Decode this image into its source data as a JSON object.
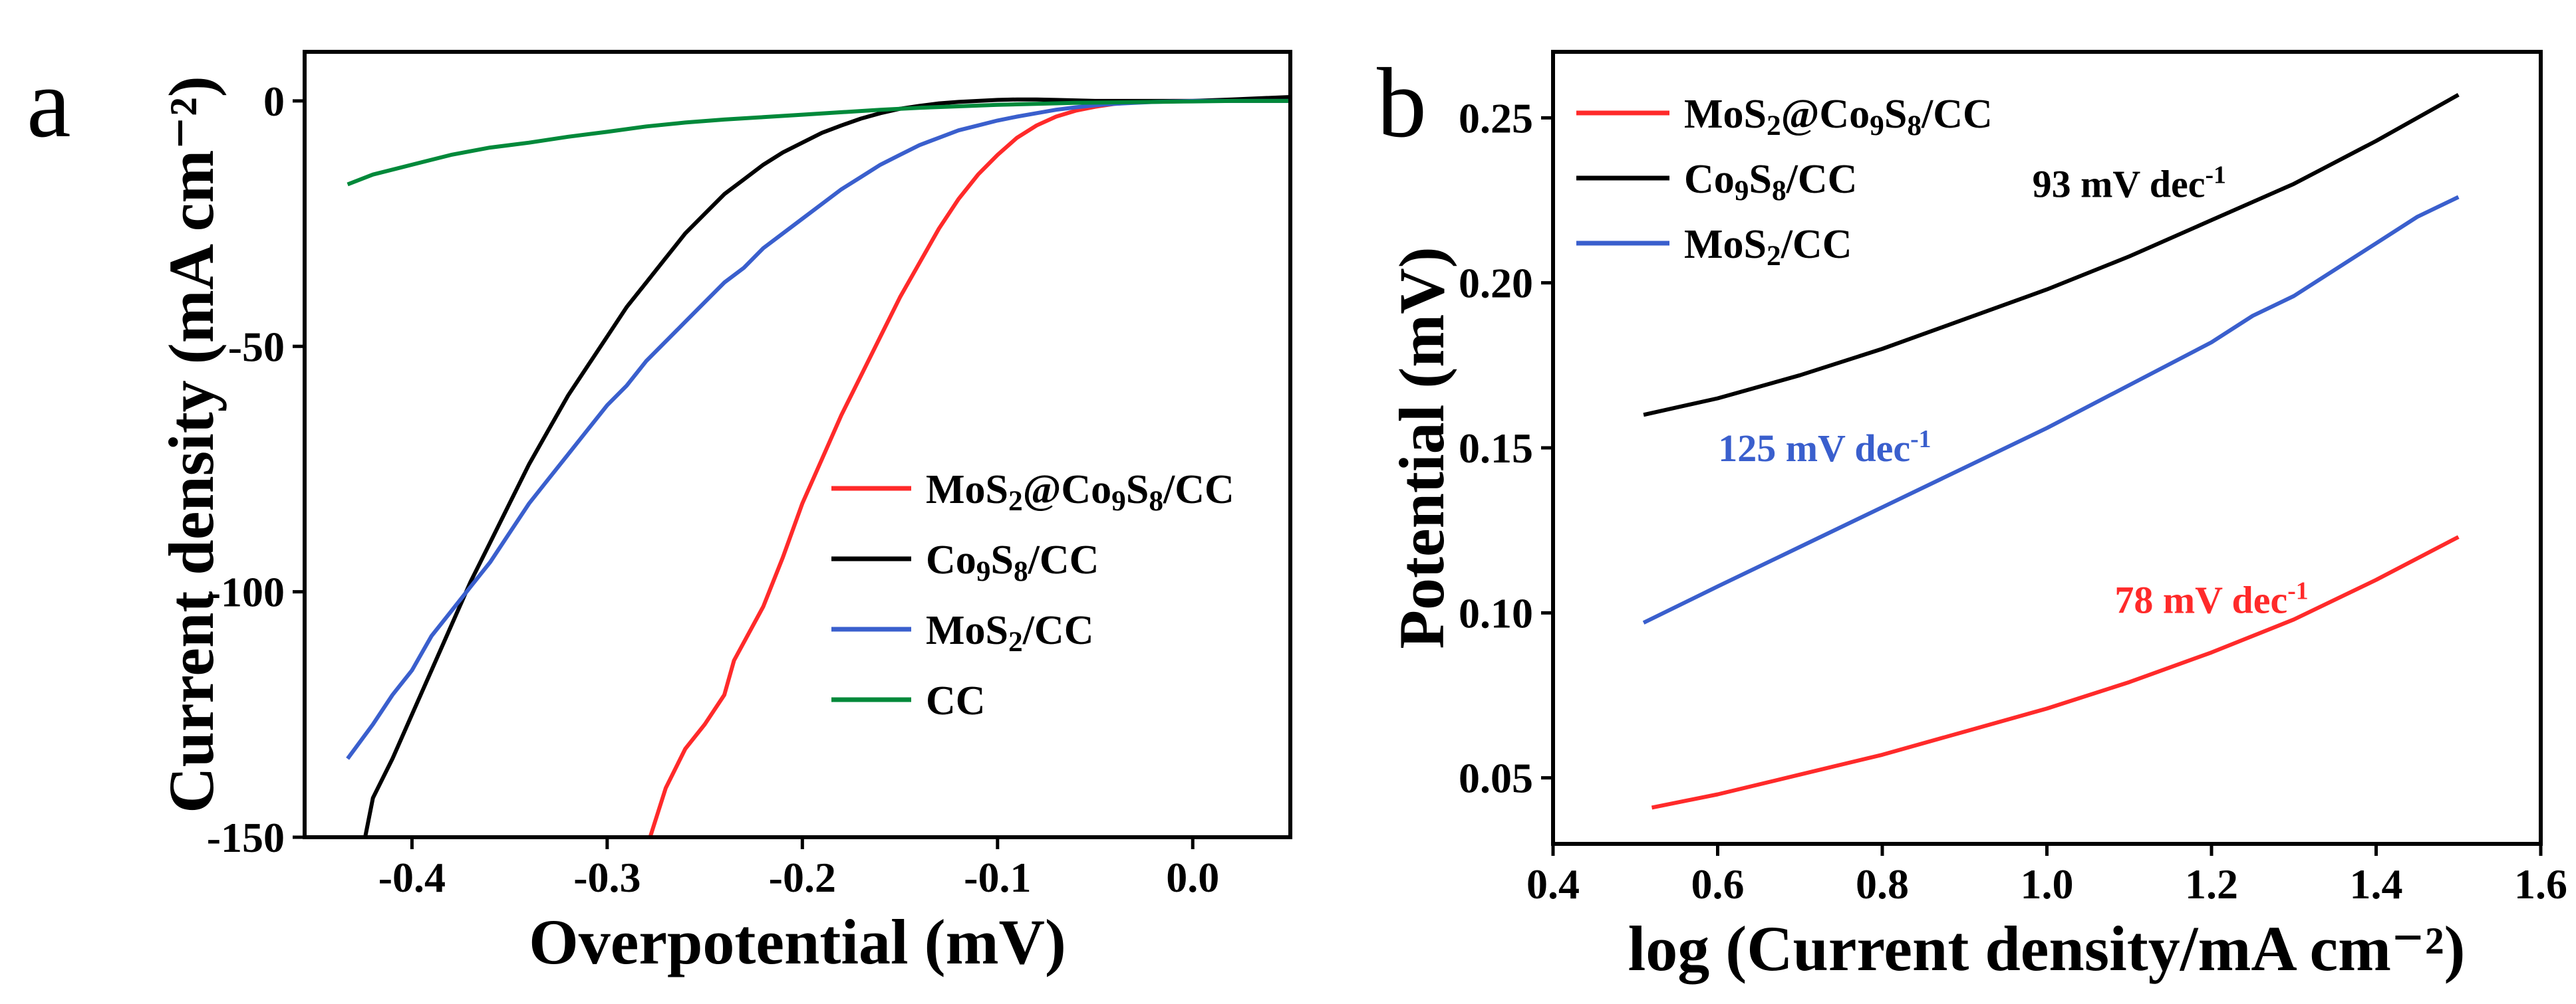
{
  "figure": {
    "panels": [
      {
        "panel_label": "a",
        "chart_data": {
          "type": "line",
          "title": "",
          "xlabel": "Overpotential (mV)",
          "ylabel": "Current density (mA cm⁻²)",
          "xlim": [
            -0.455,
            0.05
          ],
          "ylim": [
            -150,
            10
          ],
          "xticks": [
            -0.4,
            -0.3,
            -0.2,
            -0.1,
            0.0
          ],
          "xtick_labels": [
            "-0.4",
            "-0.3",
            "-0.2",
            "-0.1",
            "0.0"
          ],
          "yticks": [
            0,
            -50,
            -100,
            -150
          ],
          "ytick_labels": [
            "0",
            "-50",
            "-100",
            "-150"
          ],
          "grid": false,
          "legend_position": "center-right",
          "series": [
            {
              "name": "MoS₂@Co₉S₈/CC",
              "color": "#ff2a2a",
              "x": [
                -0.278,
                -0.27,
                -0.26,
                -0.25,
                -0.24,
                -0.235,
                -0.22,
                -0.21,
                -0.2,
                -0.19,
                -0.18,
                -0.17,
                -0.16,
                -0.15,
                -0.14,
                -0.13,
                -0.12,
                -0.11,
                -0.1,
                -0.09,
                -0.08,
                -0.07,
                -0.06,
                -0.05,
                -0.04,
                -0.03,
                -0.02,
                -0.01,
                0.0,
                0.02,
                0.05
              ],
              "y": [
                -150,
                -140,
                -132,
                -127,
                -121,
                -114,
                -103,
                -93,
                -82,
                -73,
                -64,
                -56,
                -48,
                -40,
                -33,
                -26,
                -20,
                -15,
                -11,
                -7.5,
                -5,
                -3.2,
                -2,
                -1.2,
                -0.6,
                -0.3,
                -0.1,
                0,
                0,
                0,
                0
              ]
            },
            {
              "name": "Co₉S₈/CC",
              "color": "#000000",
              "x": [
                -0.424,
                -0.42,
                -0.41,
                -0.4,
                -0.39,
                -0.38,
                -0.37,
                -0.36,
                -0.35,
                -0.34,
                -0.33,
                -0.32,
                -0.31,
                -0.3,
                -0.29,
                -0.28,
                -0.27,
                -0.26,
                -0.25,
                -0.24,
                -0.23,
                -0.22,
                -0.21,
                -0.2,
                -0.19,
                -0.18,
                -0.17,
                -0.16,
                -0.15,
                -0.14,
                -0.13,
                -0.12,
                -0.11,
                -0.1,
                -0.09,
                -0.08,
                -0.07,
                -0.06,
                -0.05,
                -0.04,
                -0.03,
                -0.02,
                -0.01,
                0.0,
                0.02,
                0.05
              ],
              "y": [
                -150,
                -142,
                -134,
                -125,
                -116,
                -107,
                -98,
                -90,
                -82,
                -74,
                -67,
                -60,
                -54,
                -48,
                -42,
                -37,
                -32,
                -27,
                -23,
                -19,
                -16,
                -13,
                -10.5,
                -8.5,
                -6.5,
                -5,
                -3.6,
                -2.5,
                -1.6,
                -1,
                -0.5,
                -0.2,
                0,
                0.2,
                0.3,
                0.3,
                0.2,
                0.1,
                0,
                0,
                0,
                0,
                0,
                0,
                0.3,
                0.8
              ]
            },
            {
              "name": "MoS₂/CC",
              "color": "#3a5fcd",
              "x": [
                -0.433,
                -0.42,
                -0.41,
                -0.4,
                -0.39,
                -0.38,
                -0.37,
                -0.36,
                -0.35,
                -0.34,
                -0.33,
                -0.32,
                -0.31,
                -0.3,
                -0.29,
                -0.28,
                -0.27,
                -0.26,
                -0.25,
                -0.24,
                -0.23,
                -0.22,
                -0.21,
                -0.2,
                -0.19,
                -0.18,
                -0.17,
                -0.16,
                -0.15,
                -0.14,
                -0.13,
                -0.12,
                -0.11,
                -0.1,
                -0.09,
                -0.08,
                -0.07,
                -0.06,
                -0.05,
                -0.04,
                -0.03,
                -0.02,
                -0.01,
                0.0,
                0.02,
                0.05
              ],
              "y": [
                -134,
                -127,
                -121,
                -116,
                -109,
                -104,
                -99,
                -94,
                -88,
                -82,
                -77,
                -72,
                -67,
                -62,
                -58,
                -53,
                -49,
                -45,
                -41,
                -37,
                -34,
                -30,
                -27,
                -24,
                -21,
                -18,
                -15.5,
                -13,
                -11,
                -9,
                -7.5,
                -6,
                -5,
                -4,
                -3.2,
                -2.5,
                -1.8,
                -1.3,
                -0.9,
                -0.6,
                -0.4,
                -0.2,
                -0.1,
                0,
                0,
                0
              ]
            },
            {
              "name": "CC",
              "color": "#00893a",
              "x": [
                -0.433,
                -0.42,
                -0.4,
                -0.38,
                -0.36,
                -0.34,
                -0.32,
                -0.3,
                -0.28,
                -0.26,
                -0.24,
                -0.22,
                -0.2,
                -0.18,
                -0.16,
                -0.14,
                -0.12,
                -0.1,
                -0.08,
                -0.06,
                -0.04,
                -0.02,
                0.0,
                0.02,
                0.05
              ],
              "y": [
                -17,
                -15,
                -13,
                -11,
                -9.5,
                -8.5,
                -7.3,
                -6.3,
                -5.2,
                -4.4,
                -3.8,
                -3.3,
                -2.8,
                -2.3,
                -1.8,
                -1.4,
                -1.1,
                -0.8,
                -0.6,
                -0.4,
                -0.3,
                -0.2,
                -0.1,
                0,
                0
              ]
            }
          ],
          "annotations": []
        }
      },
      {
        "panel_label": "b",
        "chart_data": {
          "type": "line",
          "title": "",
          "xlabel": "log (Current density/mA cm⁻²)",
          "ylabel": "Potential (mV)",
          "xlim": [
            0.4,
            1.6
          ],
          "ylim": [
            0.03,
            0.27
          ],
          "xticks": [
            0.4,
            0.6,
            0.8,
            1.0,
            1.2,
            1.4,
            1.6
          ],
          "xtick_labels": [
            "0.4",
            "0.6",
            "0.8",
            "1.0",
            "1.2",
            "1.4",
            "1.6"
          ],
          "yticks": [
            0.05,
            0.1,
            0.15,
            0.2,
            0.25
          ],
          "ytick_labels": [
            "0.05",
            "0.10",
            "0.15",
            "0.20",
            "0.25"
          ],
          "grid": false,
          "legend_position": "top-left",
          "series": [
            {
              "name": "MoS₂@Co₉S₈/CC",
              "color": "#ff2a2a",
              "x": [
                0.52,
                0.6,
                0.7,
                0.8,
                0.9,
                1.0,
                1.1,
                1.2,
                1.3,
                1.4,
                1.5
              ],
              "y": [
                0.041,
                0.045,
                0.051,
                0.057,
                0.064,
                0.071,
                0.079,
                0.088,
                0.098,
                0.11,
                0.123
              ]
            },
            {
              "name": "Co₉S₈/CC",
              "color": "#000000",
              "x": [
                0.51,
                0.6,
                0.7,
                0.8,
                0.9,
                1.0,
                1.1,
                1.2,
                1.3,
                1.4,
                1.5
              ],
              "y": [
                0.16,
                0.165,
                0.172,
                0.18,
                0.189,
                0.198,
                0.208,
                0.219,
                0.23,
                0.243,
                0.257
              ]
            },
            {
              "name": "MoS₂/CC",
              "color": "#3a5fcd",
              "x": [
                0.51,
                0.6,
                0.7,
                0.8,
                0.9,
                1.0,
                1.1,
                1.2,
                1.25,
                1.3,
                1.4,
                1.45,
                1.5
              ],
              "y": [
                0.097,
                0.108,
                0.12,
                0.132,
                0.144,
                0.156,
                0.169,
                0.182,
                0.19,
                0.196,
                0.212,
                0.22,
                0.226
              ]
            }
          ],
          "annotations": [
            {
              "text": "93 mV dec",
              "sup": "-1",
              "color": "#000000",
              "x": 1.1,
              "y": 0.226
            },
            {
              "text": "125 mV dec",
              "sup": "-1",
              "color": "#3a5fcd",
              "x": 0.73,
              "y": 0.146
            },
            {
              "text": "78 mV dec",
              "sup": "-1",
              "color": "#ff2a2a",
              "x": 1.2,
              "y": 0.1
            }
          ]
        }
      }
    ]
  }
}
